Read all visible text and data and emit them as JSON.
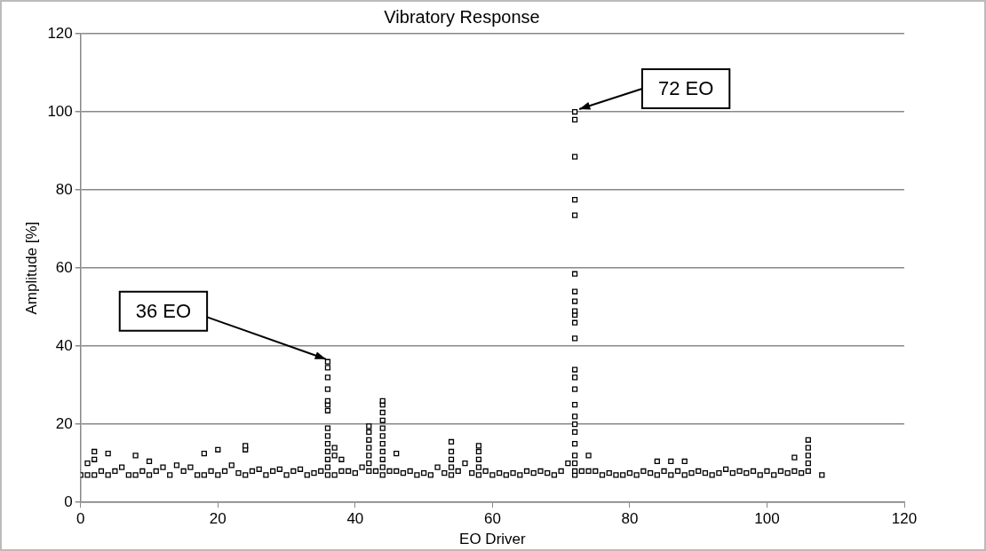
{
  "chart_data": {
    "type": "scatter",
    "title": "Vibratory Response",
    "xlabel": "EO Driver",
    "ylabel": "Amplitude [%]",
    "xlim": [
      0,
      120
    ],
    "xticks": [
      0,
      20,
      40,
      60,
      80,
      100,
      120
    ],
    "ylim": [
      0,
      120
    ],
    "yticks": [
      0,
      20,
      40,
      60,
      80,
      100,
      120
    ],
    "grid": "y",
    "legend": false,
    "marker": "square",
    "series": [
      {
        "color": "#000000",
        "x": [
          0,
          1,
          1,
          2,
          2,
          2,
          3,
          4,
          4,
          5,
          6,
          7,
          8,
          8,
          9,
          10,
          10,
          11,
          12,
          13,
          14,
          15,
          16,
          17,
          18,
          18,
          19,
          20,
          20,
          21,
          22,
          23,
          24,
          24,
          24,
          25,
          26,
          27,
          28,
          29,
          30,
          31,
          32,
          33,
          34,
          35,
          36,
          36,
          36,
          36,
          36,
          36,
          36,
          36,
          36,
          36,
          36,
          36,
          36,
          36,
          37,
          37,
          37,
          38,
          38,
          39,
          40,
          41,
          42,
          42,
          42,
          42,
          42,
          42,
          42,
          43,
          44,
          44,
          44,
          44,
          44,
          44,
          44,
          44,
          44,
          44,
          44,
          45,
          46,
          46,
          47,
          48,
          49,
          50,
          51,
          52,
          53,
          54,
          54,
          54,
          54,
          54,
          55,
          56,
          57,
          58,
          58,
          58,
          58,
          58,
          59,
          60,
          61,
          62,
          63,
          64,
          65,
          66,
          67,
          68,
          69,
          70,
          71,
          72,
          72,
          72,
          72,
          72,
          72,
          72,
          72,
          72,
          72,
          72,
          72,
          72,
          72,
          72,
          72,
          72,
          72,
          72,
          72,
          72,
          72,
          72,
          72,
          73,
          74,
          74,
          75,
          76,
          77,
          78,
          79,
          80,
          81,
          82,
          83,
          84,
          84,
          85,
          86,
          86,
          87,
          88,
          88,
          89,
          90,
          91,
          92,
          93,
          94,
          95,
          96,
          97,
          98,
          99,
          100,
          101,
          102,
          103,
          104,
          104,
          105,
          106,
          106,
          106,
          106,
          106,
          108
        ],
        "values": [
          7,
          7,
          10,
          7,
          11,
          13,
          8,
          7,
          12.5,
          8,
          9,
          7,
          7,
          12,
          8,
          7,
          10.5,
          8,
          9,
          7,
          9.5,
          8,
          9,
          7,
          7,
          12.5,
          8,
          7,
          13.5,
          8,
          9.5,
          7.5,
          7,
          13.5,
          14.5,
          8,
          8.5,
          7,
          8,
          8.5,
          7,
          8,
          8.5,
          7,
          7.5,
          8,
          7,
          9,
          11,
          13,
          15,
          17,
          19,
          23.5,
          25,
          26,
          29,
          32,
          34.5,
          36,
          7,
          12,
          14,
          8,
          11,
          8,
          7.5,
          9,
          8,
          10,
          12,
          14,
          16,
          18,
          19.5,
          8,
          7,
          9,
          11,
          13,
          15,
          17,
          19,
          21,
          23,
          25,
          26,
          8,
          8,
          12.5,
          7.5,
          8,
          7,
          7.5,
          7,
          9,
          7.5,
          7,
          9,
          11,
          13,
          15.5,
          8,
          10,
          7.5,
          7,
          9,
          11,
          13,
          14.5,
          8,
          7,
          7.5,
          7,
          7.5,
          7,
          8,
          7.5,
          8,
          7.5,
          7,
          8,
          10,
          7,
          8,
          10,
          12,
          15,
          18,
          20,
          22,
          25,
          29,
          32,
          34,
          42,
          46,
          48,
          49,
          51.5,
          54,
          58.5,
          73.5,
          77.5,
          88.5,
          98,
          100,
          8,
          8,
          12,
          8,
          7,
          7.5,
          7,
          7,
          7.5,
          7,
          8,
          7.5,
          7,
          10.5,
          8,
          7,
          10.5,
          8,
          7,
          10.5,
          7.5,
          8,
          7.5,
          7,
          7.5,
          8.5,
          7.5,
          8,
          7.5,
          8,
          7,
          8,
          7,
          8,
          7.5,
          8,
          11.5,
          7.5,
          8,
          10,
          12,
          14,
          16,
          7
        ]
      }
    ],
    "annotations": [
      {
        "text": "36 EO",
        "x": 36,
        "y": 36
      },
      {
        "text": "72 EO",
        "x": 72,
        "y": 100
      }
    ]
  }
}
